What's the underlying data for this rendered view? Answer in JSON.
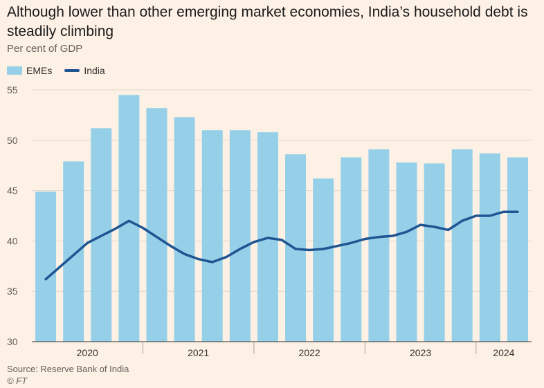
{
  "title": "Although lower than other emerging market economies, India’s household debt is steadily climbing",
  "subtitle": "Per cent of GDP",
  "source": "Source: Reserve Bank of India",
  "credit": "© FT",
  "colors": {
    "emes": "#96d0e8",
    "india": "#1f5592",
    "grid": "#e1d6cc",
    "axis": "#33302e"
  },
  "chart_data": {
    "type": "bar",
    "x_unit": "quarter",
    "quarters": [
      "2020-Q1",
      "2020-Q2",
      "2020-Q3",
      "2020-Q4",
      "2021-Q1",
      "2021-Q2",
      "2021-Q3",
      "2021-Q4",
      "2022-Q1",
      "2022-Q2",
      "2022-Q3",
      "2022-Q4",
      "2023-Q1",
      "2023-Q2",
      "2023-Q3",
      "2023-Q4",
      "2024-Q1",
      "2024-Q2"
    ],
    "year_labels": [
      {
        "label": "2020",
        "start": 0,
        "end": 4
      },
      {
        "label": "2021",
        "start": 4,
        "end": 8
      },
      {
        "label": "2022",
        "start": 8,
        "end": 12
      },
      {
        "label": "2023",
        "start": 12,
        "end": 16
      },
      {
        "label": "2024",
        "start": 16,
        "end": 18
      }
    ],
    "series": [
      {
        "name": "EMEs",
        "type": "bar",
        "values": [
          44.9,
          47.9,
          51.2,
          54.5,
          53.2,
          52.3,
          51.0,
          51.0,
          50.8,
          48.6,
          46.2,
          48.3,
          49.1,
          47.8,
          47.7,
          49.1,
          48.7,
          48.3
        ]
      },
      {
        "name": "India",
        "type": "line",
        "x": [
          0,
          0.5,
          1,
          1.5,
          2,
          2.5,
          3,
          3.5,
          4,
          4.5,
          5,
          5.5,
          6,
          6.5,
          7,
          7.5,
          8,
          8.5,
          9,
          9.5,
          10,
          10.5,
          11,
          11.5,
          12,
          12.5,
          13,
          13.5,
          14,
          14.5,
          15,
          15.5,
          16,
          16.5,
          17
        ],
        "values": [
          36.2,
          37.4,
          38.6,
          39.8,
          40.5,
          41.2,
          42.0,
          41.3,
          40.4,
          39.5,
          38.7,
          38.2,
          37.9,
          38.4,
          39.2,
          39.9,
          40.3,
          40.1,
          39.2,
          39.1,
          39.2,
          39.5,
          39.8,
          40.2,
          40.4,
          40.5,
          40.9,
          41.6,
          41.4,
          41.1,
          42.0,
          42.5,
          42.5,
          42.9,
          42.9
        ]
      }
    ],
    "yaxis": {
      "ticks": [
        30,
        35,
        40,
        45,
        50,
        55
      ],
      "min": 30,
      "max": 55
    },
    "grid": true,
    "legend_position": "top-left"
  }
}
